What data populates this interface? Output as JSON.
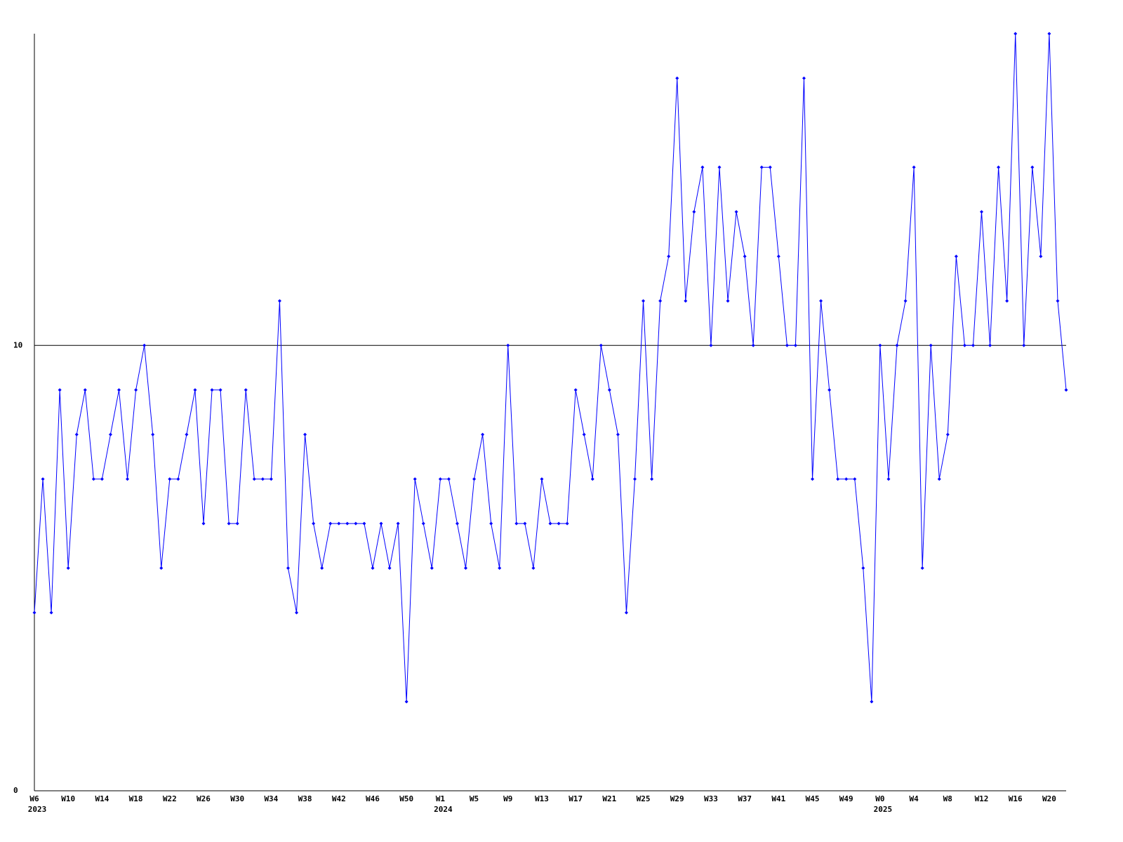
{
  "chart_data": {
    "type": "line",
    "categories": [
      "W6",
      null,
      null,
      null,
      "W10",
      null,
      null,
      null,
      "W14",
      null,
      null,
      null,
      "W18",
      null,
      null,
      null,
      "W22",
      null,
      null,
      null,
      "W26",
      null,
      null,
      null,
      "W30",
      null,
      null,
      null,
      "W34",
      null,
      null,
      null,
      "W38",
      null,
      null,
      null,
      "W42",
      null,
      null,
      null,
      "W46",
      null,
      null,
      null,
      "W50",
      null,
      null,
      null,
      "W1",
      null,
      null,
      null,
      "W5",
      null,
      null,
      null,
      "W9",
      null,
      null,
      null,
      "W13",
      null,
      null,
      null,
      "W17",
      null,
      null,
      null,
      "W21",
      null,
      null,
      null,
      "W25",
      null,
      null,
      null,
      "W29",
      null,
      null,
      null,
      "W33",
      null,
      null,
      null,
      "W37",
      null,
      null,
      null,
      "W41",
      null,
      null,
      null,
      "W45",
      null,
      null,
      null,
      "W49",
      null,
      null,
      null,
      "W0",
      null,
      null,
      null,
      "W4",
      null,
      null,
      null,
      "W8",
      null,
      null,
      null,
      "W12",
      null,
      null,
      null,
      "W16",
      null,
      null,
      null,
      "W20",
      null,
      null
    ],
    "years": [
      "2023",
      null,
      null,
      null,
      null,
      null,
      null,
      null,
      null,
      null,
      null,
      null,
      null,
      null,
      null,
      null,
      null,
      null,
      null,
      null,
      null,
      null,
      null,
      null,
      null,
      null,
      null,
      null,
      null,
      null,
      null,
      null,
      null,
      null,
      null,
      null,
      null,
      null,
      null,
      null,
      null,
      null,
      null,
      null,
      null,
      null,
      null,
      null,
      "2024",
      null,
      null,
      null,
      null,
      null,
      null,
      null,
      null,
      null,
      null,
      null,
      null,
      null,
      null,
      null,
      null,
      null,
      null,
      null,
      null,
      null,
      null,
      null,
      null,
      null,
      null,
      null,
      null,
      null,
      null,
      null,
      null,
      null,
      null,
      null,
      null,
      null,
      null,
      null,
      null,
      null,
      null,
      null,
      null,
      null,
      null,
      null,
      null,
      null,
      null,
      null,
      "2025",
      null,
      null,
      null,
      null,
      null,
      null,
      null,
      null,
      null,
      null,
      null,
      null,
      null,
      null,
      null,
      null,
      null,
      null,
      null,
      null,
      null
    ],
    "series": [
      {
        "color": "#0000ff",
        "values": [
          4,
          7,
          4,
          9,
          5,
          8,
          9,
          7,
          7,
          8,
          9,
          7,
          9,
          10,
          8,
          5,
          7,
          7,
          8,
          9,
          6,
          9,
          9,
          6,
          6,
          9,
          7,
          7,
          7,
          11,
          5,
          4,
          8,
          6,
          5,
          6,
          6,
          6,
          6,
          6,
          5,
          6,
          5,
          6,
          2,
          7,
          6,
          5,
          7,
          7,
          6,
          5,
          7,
          8,
          6,
          5,
          10,
          6,
          6,
          5,
          7,
          6,
          6,
          6,
          9,
          8,
          7,
          10,
          9,
          8,
          4,
          7,
          11,
          7,
          11,
          12,
          16,
          11,
          13,
          14,
          10,
          14,
          11,
          13,
          12,
          10,
          14,
          14,
          12,
          10,
          10,
          16,
          7,
          11,
          9,
          7,
          7,
          7,
          5,
          2,
          10,
          7,
          10,
          11,
          14,
          5,
          10,
          7,
          8,
          12,
          10,
          10,
          13,
          10,
          14,
          11,
          17,
          10,
          14,
          12,
          17,
          11,
          9
        ]
      }
    ],
    "ylim": [
      0,
      17
    ],
    "yticks": [
      0,
      10
    ],
    "grid": true
  }
}
